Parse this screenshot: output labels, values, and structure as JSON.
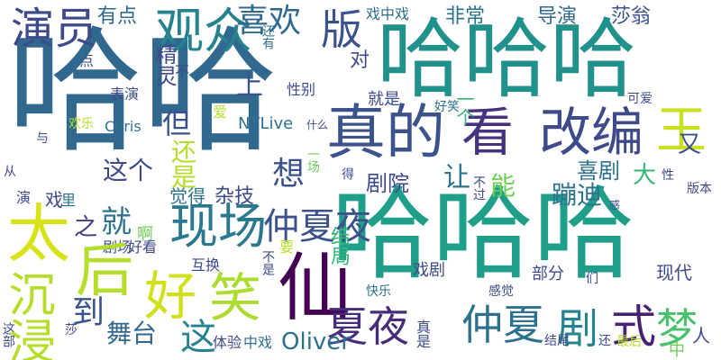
{
  "colors": {
    "background": "#ffffff",
    "palette": [
      "#440154",
      "#482878",
      "#3e4a89",
      "#31688e",
      "#26828e",
      "#1f9e89",
      "#35b779",
      "#6ece58",
      "#b5de2b",
      "#fde725"
    ]
  },
  "words": [
    {
      "text": "哈哈",
      "color": "#31688e"
    },
    {
      "text": "哈哈哈",
      "color": "#21918c"
    },
    {
      "text": "哈哈哈",
      "color": "#1f9e89"
    },
    {
      "text": "真的",
      "color": "#3b528b"
    },
    {
      "text": "仙",
      "color": "#440154"
    },
    {
      "text": "看",
      "color": "#46327e"
    },
    {
      "text": "观众",
      "color": "#26828e"
    },
    {
      "text": "改编",
      "color": "#3e4a89"
    },
    {
      "text": "王",
      "color": "#c8e020"
    },
    {
      "text": "太",
      "color": "#d8e219"
    },
    {
      "text": "好",
      "color": "#d0e11c"
    },
    {
      "text": "笑",
      "color": "#addc30"
    },
    {
      "text": "现场",
      "color": "#2a788e"
    },
    {
      "text": "版",
      "color": "#3b528b"
    },
    {
      "text": "演员",
      "color": "#3e4a89"
    },
    {
      "text": "喜欢",
      "color": "#31688e"
    },
    {
      "text": "有点",
      "color": "#31688e"
    },
    {
      "text": "夏夜",
      "color": "#472c7a"
    },
    {
      "text": "仲夏",
      "color": "#2c728e"
    },
    {
      "text": "剧",
      "color": "#25848e"
    },
    {
      "text": "式",
      "color": "#482173"
    },
    {
      "text": "梦",
      "color": "#4ac16d"
    },
    {
      "text": "仲夏夜",
      "color": "#3b528b"
    },
    {
      "text": "Oliver",
      "color": "#2c728e"
    },
    {
      "text": "舞台",
      "color": "#31688e"
    },
    {
      "text": "这",
      "color": "#26828e"
    },
    {
      "text": "到",
      "color": "#3b528b"
    },
    {
      "text": "就",
      "color": "#2c728e"
    },
    {
      "text": "之",
      "color": "#443983"
    },
    {
      "text": "但",
      "color": "#3b528b"
    },
    {
      "text": "这个",
      "color": "#3e4a89"
    },
    {
      "text": "想",
      "color": "#3b528b"
    },
    {
      "text": "能",
      "color": "#6ece58"
    },
    {
      "text": "蹦迪",
      "color": "#2c728e"
    },
    {
      "text": "喜剧",
      "color": "#2c728e"
    },
    {
      "text": "剧院",
      "color": "#3e4a89"
    },
    {
      "text": "杂技",
      "color": "#3e4a89"
    },
    {
      "text": "大",
      "color": "#35b779"
    },
    {
      "text": "又",
      "color": "#3b528b"
    },
    {
      "text": "让",
      "color": "#2c728e"
    },
    {
      "text": "非常",
      "color": "#2c728e"
    },
    {
      "text": "导演",
      "color": "#31688e"
    },
    {
      "text": "莎翁",
      "color": "#3b528b"
    },
    {
      "text": "戏中戏",
      "color": "#2c728e"
    },
    {
      "text": "上",
      "color": "#3b528b"
    },
    {
      "text": "对",
      "color": "#3e4a89"
    },
    {
      "text": "精灵",
      "color": "#3e4a89"
    },
    {
      "text": "还有",
      "color": "#2c728e"
    },
    {
      "text": "点",
      "color": "#3b528b"
    },
    {
      "text": "不",
      "color": "#3e4a89"
    },
    {
      "text": "表演",
      "color": "#3e4a89"
    },
    {
      "text": "性别",
      "color": "#3e4a89"
    },
    {
      "text": "就是",
      "color": "#3e4a89"
    },
    {
      "text": "一个",
      "color": "#35b779"
    },
    {
      "text": "可爱",
      "color": "#3e4a89"
    },
    {
      "text": "好笑",
      "color": "#2c728e"
    },
    {
      "text": "Chris",
      "color": "#2c728e"
    },
    {
      "text": "NTLive",
      "color": "#2c728e"
    },
    {
      "text": "什么",
      "color": "#3e4a89"
    },
    {
      "text": "欢乐",
      "color": "#b5de2b"
    },
    {
      "text": "爱",
      "color": "#b5de2b"
    },
    {
      "text": "与",
      "color": "#3e4a89"
    },
    {
      "text": "还是",
      "color": "#b5de2b"
    },
    {
      "text": "一场",
      "color": "#6ece58"
    },
    {
      "text": "得",
      "color": "#3e4a89"
    },
    {
      "text": "不过",
      "color": "#3e4a89"
    },
    {
      "text": "性",
      "color": "#3e4a89"
    },
    {
      "text": "版本",
      "color": "#3e4a89"
    },
    {
      "text": "从",
      "color": "#3e4a89"
    },
    {
      "text": "演",
      "color": "#3e4a89"
    },
    {
      "text": "戏",
      "color": "#3e4a89"
    },
    {
      "text": "里",
      "color": "#2c728e"
    },
    {
      "text": "觉得",
      "color": "#2c728e"
    },
    {
      "text": "啊",
      "color": "#6ece58"
    },
    {
      "text": "感",
      "color": "#3e4a89"
    },
    {
      "text": "剧场",
      "color": "#3e4a89"
    },
    {
      "text": "好看",
      "color": "#3e4a89"
    },
    {
      "text": "要",
      "color": "#b5de2b"
    },
    {
      "text": "互换",
      "color": "#3e4a89"
    },
    {
      "text": "不是",
      "color": "#3e4a89"
    },
    {
      "text": "结局",
      "color": "#35b779"
    },
    {
      "text": "戏剧",
      "color": "#3e4a89"
    },
    {
      "text": "部分",
      "color": "#3e4a89"
    },
    {
      "text": "们",
      "color": "#3e4a89"
    },
    {
      "text": "现代",
      "color": "#3e4a89"
    },
    {
      "text": "快乐",
      "color": "#2c728e"
    },
    {
      "text": "感觉",
      "color": "#3e4a89"
    },
    {
      "text": "人",
      "color": "#3e4a89"
    },
    {
      "text": "这部",
      "color": "#3e4a89"
    },
    {
      "text": "莎",
      "color": "#3e4a89"
    },
    {
      "text": "体验",
      "color": "#3e4a89"
    },
    {
      "text": "中戏",
      "color": "#2c728e"
    },
    {
      "text": "真是",
      "color": "#3e4a89"
    },
    {
      "text": "结尾",
      "color": "#3e4a89"
    },
    {
      "text": "还",
      "color": "#3e4a89"
    },
    {
      "text": "最后",
      "color": "#b5de2b"
    },
    {
      "text": "中",
      "color": "#6ece58"
    },
    {
      "text": "沉浸",
      "color": "#b5de2b"
    },
    {
      "text": "后",
      "color": "#b5de2b"
    }
  ]
}
